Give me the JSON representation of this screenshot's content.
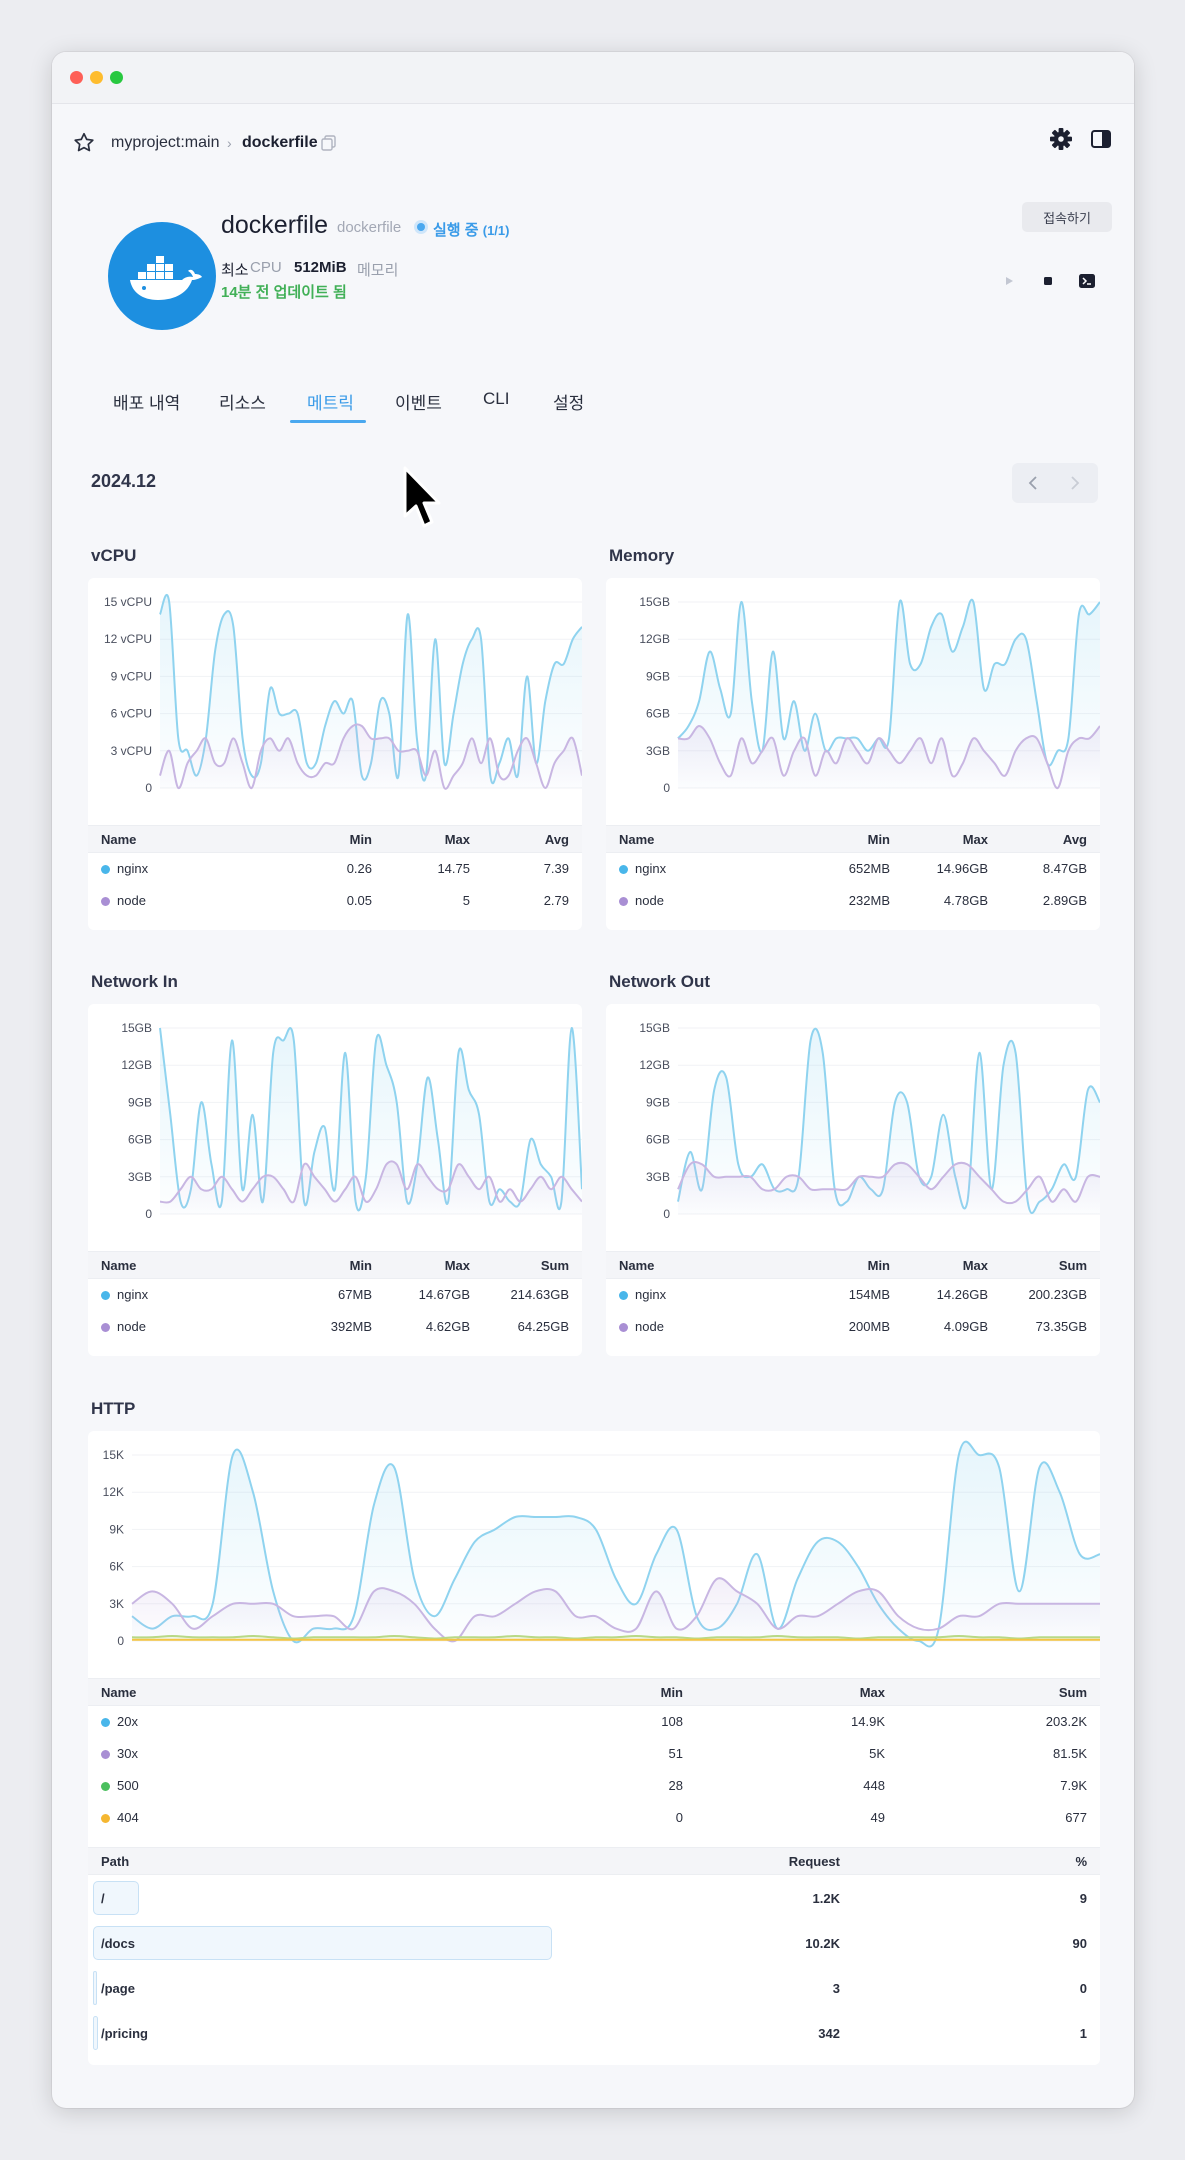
{
  "window": {
    "colors": {
      "close": "#fe5f57",
      "minimize": "#febc2e",
      "zoom": "#28c840"
    }
  },
  "breadcrumb": {
    "project": "myproject:main",
    "separator": "›",
    "service": "dockerfile"
  },
  "service": {
    "name": "dockerfile",
    "subtitle": "dockerfile",
    "status": "실행 중",
    "status_count": "(1/1)",
    "spec_label": "최소",
    "cpu_label": "CPU",
    "memory_value": "512MiB",
    "memory_label": "메모리",
    "updated": "14분 전 업데이트 됨",
    "connect_label": "접속하기"
  },
  "tabs": [
    {
      "label": "배포 내역"
    },
    {
      "label": "리소스"
    },
    {
      "label": "메트릭",
      "active": true
    },
    {
      "label": "이벤트"
    },
    {
      "label": "CLI"
    },
    {
      "label": "설정"
    }
  ],
  "date": "2024.12",
  "colors": {
    "series_blue": "#8fd3ef",
    "series_purple": "#c8b6e2",
    "series_green": "#b8d986",
    "accent": "#3a9be8"
  },
  "metrics": [
    {
      "title": "vCPU",
      "chart_data": {
        "type": "line",
        "yticks": [
          "15 vCPU",
          "12 vCPU",
          "9 vCPU",
          "6 vCPU",
          "3 vCPU",
          "0"
        ],
        "ylim": [
          0,
          15
        ],
        "series": [
          {
            "name": "nginx",
            "color": "#8fd3ef",
            "values": [
              14,
              15,
              4,
              3,
              1,
              4,
              11,
              14,
              13,
              4,
              1,
              2,
              8,
              6,
              6,
              6,
              2,
              2,
              5,
              7,
              6,
              7,
              1,
              2,
              7,
              6,
              1,
              14,
              4,
              1,
              12,
              2,
              6,
              10,
              12,
              12,
              1,
              2,
              4,
              1,
              9,
              2,
              7,
              10,
              10,
              12,
              13
            ]
          },
          {
            "name": "node",
            "color": "#c8b6e2",
            "values": [
              1,
              3,
              0,
              2,
              3,
              4,
              2,
              2,
              4,
              2,
              0,
              3,
              4,
              3,
              4,
              2,
              1,
              1,
              2,
              2,
              4,
              5,
              5,
              4,
              4,
              4,
              3,
              3,
              3,
              1,
              3,
              0,
              1,
              2,
              4,
              2,
              4,
              1,
              1,
              3,
              4,
              2,
              0,
              2,
              3,
              4,
              1
            ]
          }
        ],
        "table": {
          "columns": [
            "Name",
            "Min",
            "Max",
            "Avg"
          ],
          "rows": [
            {
              "name": "nginx",
              "min": "0.26",
              "max": "14.75",
              "avg": "7.39"
            },
            {
              "name": "node",
              "min": "0.05",
              "max": "5",
              "avg": "2.79"
            }
          ]
        }
      }
    },
    {
      "title": "Memory",
      "chart_data": {
        "type": "line",
        "yticks": [
          "15GB",
          "12GB",
          "9GB",
          "6GB",
          "3GB",
          "0"
        ],
        "ylim": [
          0,
          15
        ],
        "series": [
          {
            "name": "nginx",
            "color": "#8fd3ef",
            "values": [
              4,
              5,
              7,
              11,
              8,
              6,
              15,
              7,
              3,
              11,
              4,
              7,
              3,
              6,
              3,
              4,
              4,
              4,
              3,
              4,
              4,
              15,
              10,
              10,
              13,
              14,
              11,
              13,
              15,
              8,
              10,
              10,
              12,
              12,
              7,
              2,
              3,
              4,
              14,
              14,
              15
            ]
          },
          {
            "name": "node",
            "color": "#c8b6e2",
            "values": [
              4,
              4,
              5,
              4,
              2,
              1,
              4,
              2,
              3,
              4,
              1,
              3,
              4,
              1,
              3,
              2,
              4,
              3,
              2,
              4,
              3,
              2,
              3,
              4,
              2,
              4,
              1,
              2,
              4,
              3,
              2,
              1,
              3,
              4,
              4,
              2,
              0,
              3,
              4,
              4,
              5
            ]
          }
        ],
        "table": {
          "columns": [
            "Name",
            "Min",
            "Max",
            "Avg"
          ],
          "rows": [
            {
              "name": "nginx",
              "min": "652MB",
              "max": "14.96GB",
              "avg": "8.47GB"
            },
            {
              "name": "node",
              "min": "232MB",
              "max": "4.78GB",
              "avg": "2.89GB"
            }
          ]
        }
      }
    },
    {
      "title": "Network In",
      "chart_data": {
        "type": "line",
        "yticks": [
          "15GB",
          "12GB",
          "9GB",
          "6GB",
          "3GB",
          "0"
        ],
        "ylim": [
          0,
          15
        ],
        "series": [
          {
            "name": "nginx",
            "color": "#8fd3ef",
            "values": [
              15,
              8,
              1,
              2,
              9,
              4,
              1,
              14,
              2,
              8,
              1,
              13,
              14,
              14,
              1,
              5,
              7,
              2,
              13,
              1,
              3,
              14,
              12,
              9,
              1,
              4,
              11,
              6,
              1,
              13,
              10,
              8,
              1,
              2,
              1,
              1,
              6,
              4,
              3,
              1,
              15,
              2
            ]
          },
          {
            "name": "node",
            "color": "#c8b6e2",
            "values": [
              1,
              1,
              2,
              3,
              2,
              2,
              3,
              2,
              1,
              2,
              3,
              3,
              2,
              1,
              4,
              3,
              2,
              1,
              2,
              3,
              1,
              2,
              4,
              4,
              2,
              4,
              3,
              2,
              2,
              4,
              3,
              2,
              3,
              1,
              2,
              1,
              2,
              3,
              2,
              3,
              2,
              1
            ]
          }
        ],
        "table": {
          "columns": [
            "Name",
            "Min",
            "Max",
            "Sum"
          ],
          "rows": [
            {
              "name": "nginx",
              "min": "67MB",
              "max": "14.67GB",
              "sum": "214.63GB"
            },
            {
              "name": "node",
              "min": "392MB",
              "max": "4.62GB",
              "sum": "64.25GB"
            }
          ]
        }
      }
    },
    {
      "title": "Network Out",
      "chart_data": {
        "type": "line",
        "yticks": [
          "15GB",
          "12GB",
          "9GB",
          "6GB",
          "3GB",
          "0"
        ],
        "ylim": [
          0,
          15
        ],
        "series": [
          {
            "name": "nginx",
            "color": "#8fd3ef",
            "values": [
              1,
              5,
              2,
              10,
              11,
              4,
              3,
              4,
              2,
              2,
              3,
              14,
              13,
              2,
              1,
              3,
              2,
              2,
              9,
              9,
              3,
              3,
              8,
              3,
              1,
              13,
              2,
              12,
              13,
              1,
              1,
              2,
              4,
              3,
              10,
              9
            ]
          },
          {
            "name": "node",
            "color": "#c8b6e2",
            "values": [
              2,
              4,
              4,
              3,
              3,
              3,
              3,
              2,
              2,
              3,
              3,
              2,
              2,
              2,
              2,
              3,
              3,
              3,
              4,
              4,
              3,
              2,
              3,
              4,
              4,
              3,
              2,
              1,
              1,
              2,
              3,
              1,
              2,
              1,
              3,
              3
            ]
          }
        ],
        "table": {
          "columns": [
            "Name",
            "Min",
            "Max",
            "Sum"
          ],
          "rows": [
            {
              "name": "nginx",
              "min": "154MB",
              "max": "14.26GB",
              "sum": "200.23GB"
            },
            {
              "name": "node",
              "min": "200MB",
              "max": "4.09GB",
              "sum": "73.35GB"
            }
          ]
        }
      }
    }
  ],
  "http": {
    "title": "HTTP",
    "chart_data": {
      "type": "line",
      "yticks": [
        "15K",
        "12K",
        "9K",
        "6K",
        "3K",
        "0"
      ],
      "ylim": [
        0,
        15
      ],
      "series": [
        {
          "name": "20x",
          "color": "#8fd3ef",
          "values": [
            2,
            1,
            2,
            2,
            3,
            15,
            12,
            4,
            0,
            1,
            1,
            2,
            11,
            14,
            5,
            2,
            5,
            8,
            9,
            10,
            10,
            10,
            10,
            9,
            5,
            3,
            7,
            9,
            2,
            1,
            3,
            7,
            1,
            5,
            8,
            8,
            6,
            3,
            1,
            0,
            1,
            15,
            15,
            14,
            4,
            14,
            12,
            7,
            7
          ]
        },
        {
          "name": "30x",
          "color": "#c8b6e2",
          "values": [
            3,
            4,
            3,
            1,
            2,
            3,
            3,
            3,
            2,
            2,
            2,
            1,
            4,
            4,
            3,
            1,
            0,
            2,
            2,
            3,
            4,
            4,
            2,
            2,
            1,
            1,
            4,
            1,
            2,
            5,
            4,
            3,
            1,
            2,
            2,
            3,
            4,
            4,
            2,
            1,
            1,
            2,
            2,
            3,
            3,
            3,
            3,
            3,
            3
          ]
        },
        {
          "name": "500",
          "color": "#b8d986",
          "values": [
            0.3,
            0.3,
            0.4,
            0.3,
            0.3,
            0.3,
            0.4,
            0.3,
            0.2,
            0.3,
            0.3,
            0.3,
            0.3,
            0.4,
            0.3,
            0.2,
            0.3,
            0.3,
            0.3,
            0.4,
            0.3,
            0.3,
            0.2,
            0.3,
            0.3,
            0.4,
            0.3,
            0.3,
            0.2,
            0.3,
            0.3,
            0.3,
            0.4,
            0.3,
            0.3,
            0.3,
            0.2,
            0.3,
            0.3,
            0.3,
            0.3,
            0.4,
            0.3,
            0.3,
            0.2,
            0.3,
            0.3,
            0.3,
            0.3
          ]
        },
        {
          "name": "404",
          "color": "#f5c542",
          "values": [
            0.1,
            0.1,
            0.1,
            0.1,
            0.1,
            0.1,
            0.1,
            0.1,
            0.1,
            0.1,
            0.1,
            0.1,
            0.1,
            0.1,
            0.1,
            0.1,
            0.1,
            0.1,
            0.1,
            0.1,
            0.1,
            0.1,
            0.1,
            0.1,
            0.1,
            0.1,
            0.1,
            0.1,
            0.1,
            0.1,
            0.1,
            0.1,
            0.1,
            0.1,
            0.1,
            0.1,
            0.1,
            0.1,
            0.1,
            0.1,
            0.1,
            0.1,
            0.1,
            0.1,
            0.1,
            0.1,
            0.1,
            0.1,
            0.1
          ]
        }
      ],
      "status_table": {
        "columns": [
          "Name",
          "Min",
          "Max",
          "Sum"
        ],
        "rows": [
          {
            "name": "20x",
            "color": "#49b6ea",
            "min": "108",
            "max": "14.9K",
            "sum": "203.2K"
          },
          {
            "name": "30x",
            "color": "#a98fd4",
            "min": "51",
            "max": "5K",
            "sum": "81.5K"
          },
          {
            "name": "500",
            "color": "#4bbf5e",
            "min": "28",
            "max": "448",
            "sum": "7.9K"
          },
          {
            "name": "404",
            "color": "#f5b731",
            "min": "0",
            "max": "49",
            "sum": "677"
          }
        ]
      },
      "path_table": {
        "columns": [
          "Path",
          "Request",
          "%"
        ],
        "rows": [
          {
            "path": "/",
            "request": "1.2K",
            "percent": "9",
            "share": 0.09
          },
          {
            "path": "/docs",
            "request": "10.2K",
            "percent": "90",
            "share": 0.9
          },
          {
            "path": "/page",
            "request": "3",
            "percent": "0",
            "share": 0.0
          },
          {
            "path": "/pricing",
            "request": "342",
            "percent": "1",
            "share": 0.01
          }
        ]
      }
    }
  }
}
